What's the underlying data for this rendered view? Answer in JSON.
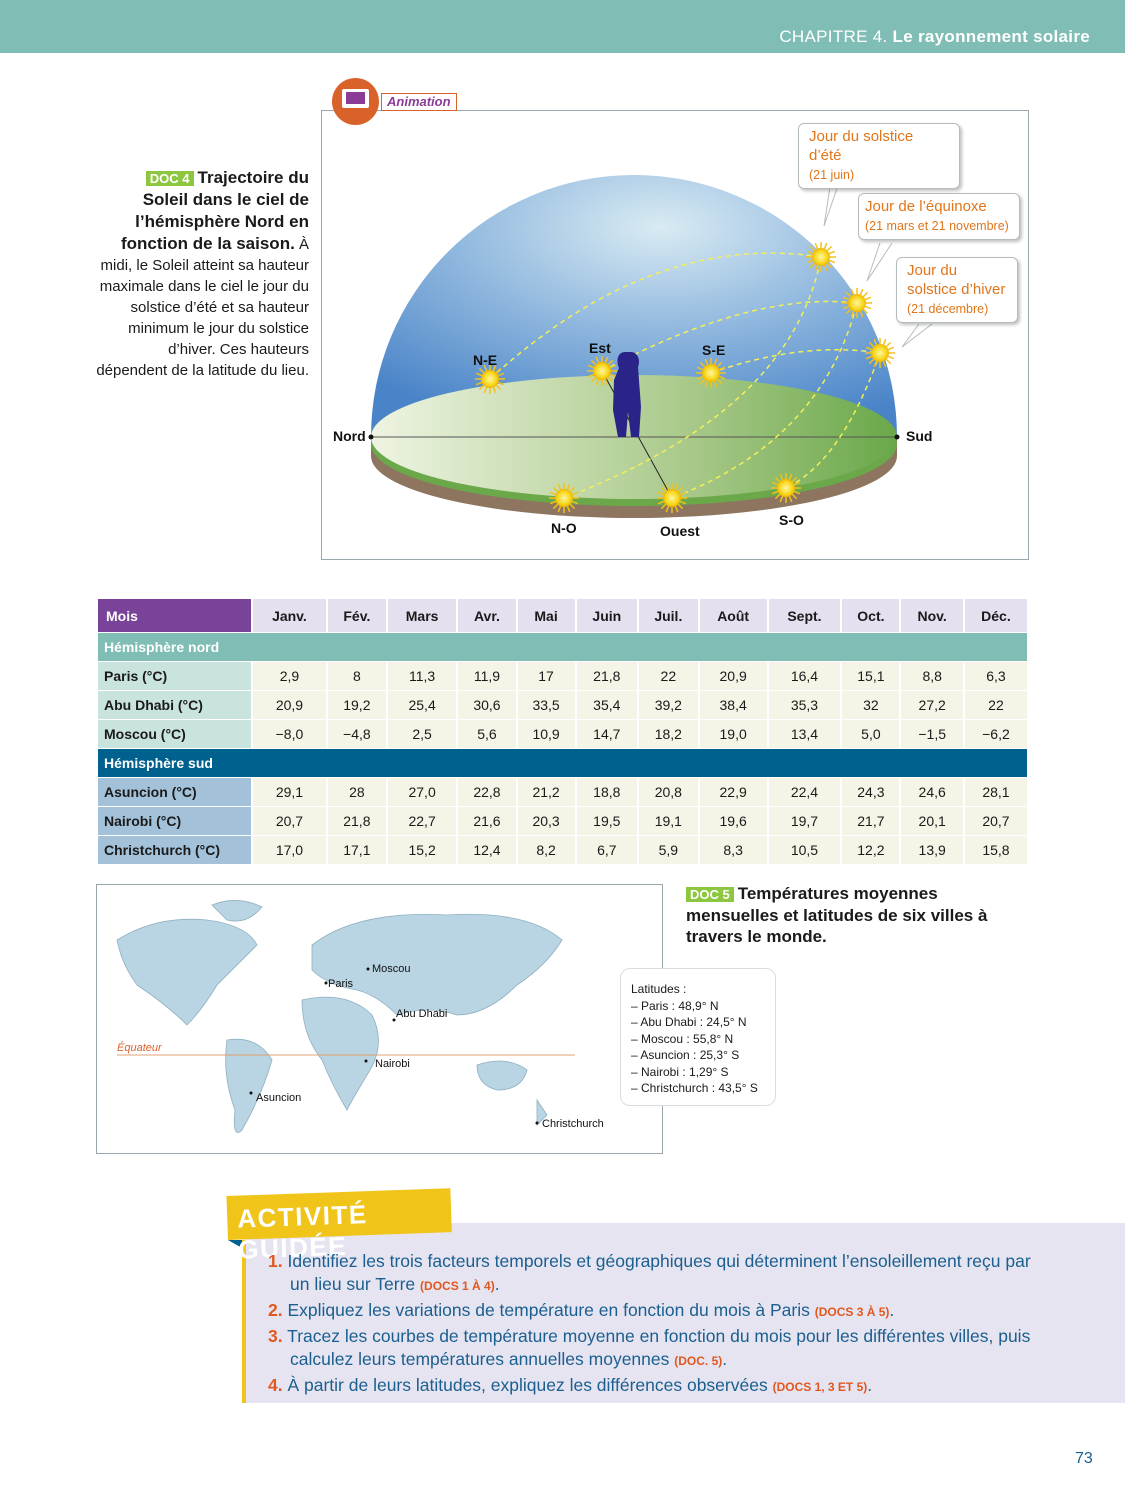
{
  "header": {
    "chapter_prefix": "CHAPITRE 4.",
    "chapter_title": "Le rayonnement solaire"
  },
  "doc4": {
    "tag": "DOC 4",
    "title": "Trajectoire du Soleil dans le ciel de l’hémisphère Nord en fonction de la saison.",
    "text": "À midi, le Soleil atteint sa hauteur maximale dans le ciel le jour du solstice d’été et sa hauteur minimum le jour du solstice d’hiver. Ces hauteurs dépendent de la latitude du lieu."
  },
  "animation": {
    "label": "Animation",
    "icon": "tablet-wifi-icon"
  },
  "diagram": {
    "callouts": [
      {
        "title": "Jour du solstice d’été",
        "date": "(21 juin)"
      },
      {
        "title": "Jour de l’équinoxe",
        "date": "(21 mars et 21 novembre)"
      },
      {
        "title": "Jour du solstice d’hiver",
        "date": "(21 décembre)"
      }
    ],
    "directions": {
      "nord": "Nord",
      "sud": "Sud",
      "ne": "N-E",
      "est": "Est",
      "se": "S-E",
      "no": "N-O",
      "ouest": "Ouest",
      "so": "S-O"
    }
  },
  "table": {
    "header": "Mois",
    "months": [
      "Janv.",
      "Fév.",
      "Mars",
      "Avr.",
      "Mai",
      "Juin",
      "Juil.",
      "Août",
      "Sept.",
      "Oct.",
      "Nov.",
      "Déc."
    ],
    "north_label": "Hémisphère nord",
    "south_label": "Hémisphère sud",
    "north": [
      {
        "city": "Paris (°C)",
        "values": [
          "2,9",
          "8",
          "11,3",
          "11,9",
          "17",
          "21,8",
          "22",
          "20,9",
          "16,4",
          "15,1",
          "8,8",
          "6,3"
        ]
      },
      {
        "city": "Abu Dhabi (°C)",
        "values": [
          "20,9",
          "19,2",
          "25,4",
          "30,6",
          "33,5",
          "35,4",
          "39,2",
          "38,4",
          "35,3",
          "32",
          "27,2",
          "22"
        ]
      },
      {
        "city": "Moscou (°C)",
        "values": [
          "−8,0",
          "−4,8",
          "2,5",
          "5,6",
          "10,9",
          "14,7",
          "18,2",
          "19,0",
          "13,4",
          "5,0",
          "−1,5",
          "−6,2"
        ]
      }
    ],
    "south": [
      {
        "city": "Asuncion (°C)",
        "values": [
          "29,1",
          "28",
          "27,0",
          "22,8",
          "21,2",
          "18,8",
          "20,8",
          "22,9",
          "22,4",
          "24,3",
          "24,6",
          "28,1"
        ]
      },
      {
        "city": "Nairobi (°C)",
        "values": [
          "20,7",
          "21,8",
          "22,7",
          "21,6",
          "20,3",
          "19,5",
          "19,1",
          "19,6",
          "19,7",
          "21,7",
          "20,1",
          "20,7"
        ]
      },
      {
        "city": "Christchurch (°C)",
        "values": [
          "17,0",
          "17,1",
          "15,2",
          "12,4",
          "8,2",
          "6,7",
          "5,9",
          "8,3",
          "10,5",
          "12,2",
          "13,9",
          "15,8"
        ]
      }
    ]
  },
  "map": {
    "equator": "Équateur",
    "cities": {
      "moscou": "Moscou",
      "paris": "Paris",
      "abudhabi": "Abu Dhabi",
      "nairobi": "Nairobi",
      "asuncion": "Asuncion",
      "christchurch": "Christchurch"
    }
  },
  "doc5": {
    "tag": "DOC 5",
    "title": "Températures moyennes mensuelles et latitudes de six villes à travers le monde."
  },
  "latitudes": {
    "title": "Latitudes :",
    "items": [
      "– Paris : 48,9° N",
      "– Abu Dhabi : 24,5° N",
      "– Moscou : 55,8° N",
      "– Asuncion : 25,3° S",
      "– Nairobi : 1,29° S",
      "– Christchurch : 43,5° S"
    ]
  },
  "activity": {
    "title": "ACTIVITÉ GUIDÉE",
    "questions": [
      {
        "num": "1.",
        "text": "Identifiez les trois facteurs temporels et géographiques qui déterminent l’ensoleillement reçu par un lieu sur Terre",
        "ref": "(DOCS 1 À 4)"
      },
      {
        "num": "2.",
        "text": "Expliquez les variations de température en fonction du mois à Paris",
        "ref": "(DOCS 3 À 5)"
      },
      {
        "num": "3.",
        "text": "Tracez les courbes de température moyenne en fonction du mois pour les différentes villes, puis calculez leurs températures annuelles moyennes",
        "ref": "(DOC. 5)"
      },
      {
        "num": "4.",
        "text": "À partir de leurs latitudes, expliquez les différences observées",
        "ref": "(DOCS 1, 3 ET 5)"
      }
    ]
  },
  "page_number": "73",
  "colors": {
    "header": "#7fbdb5",
    "purple": "#7a439a",
    "south": "#00618f",
    "accent": "#e0581f",
    "yellow": "#f0c419"
  }
}
